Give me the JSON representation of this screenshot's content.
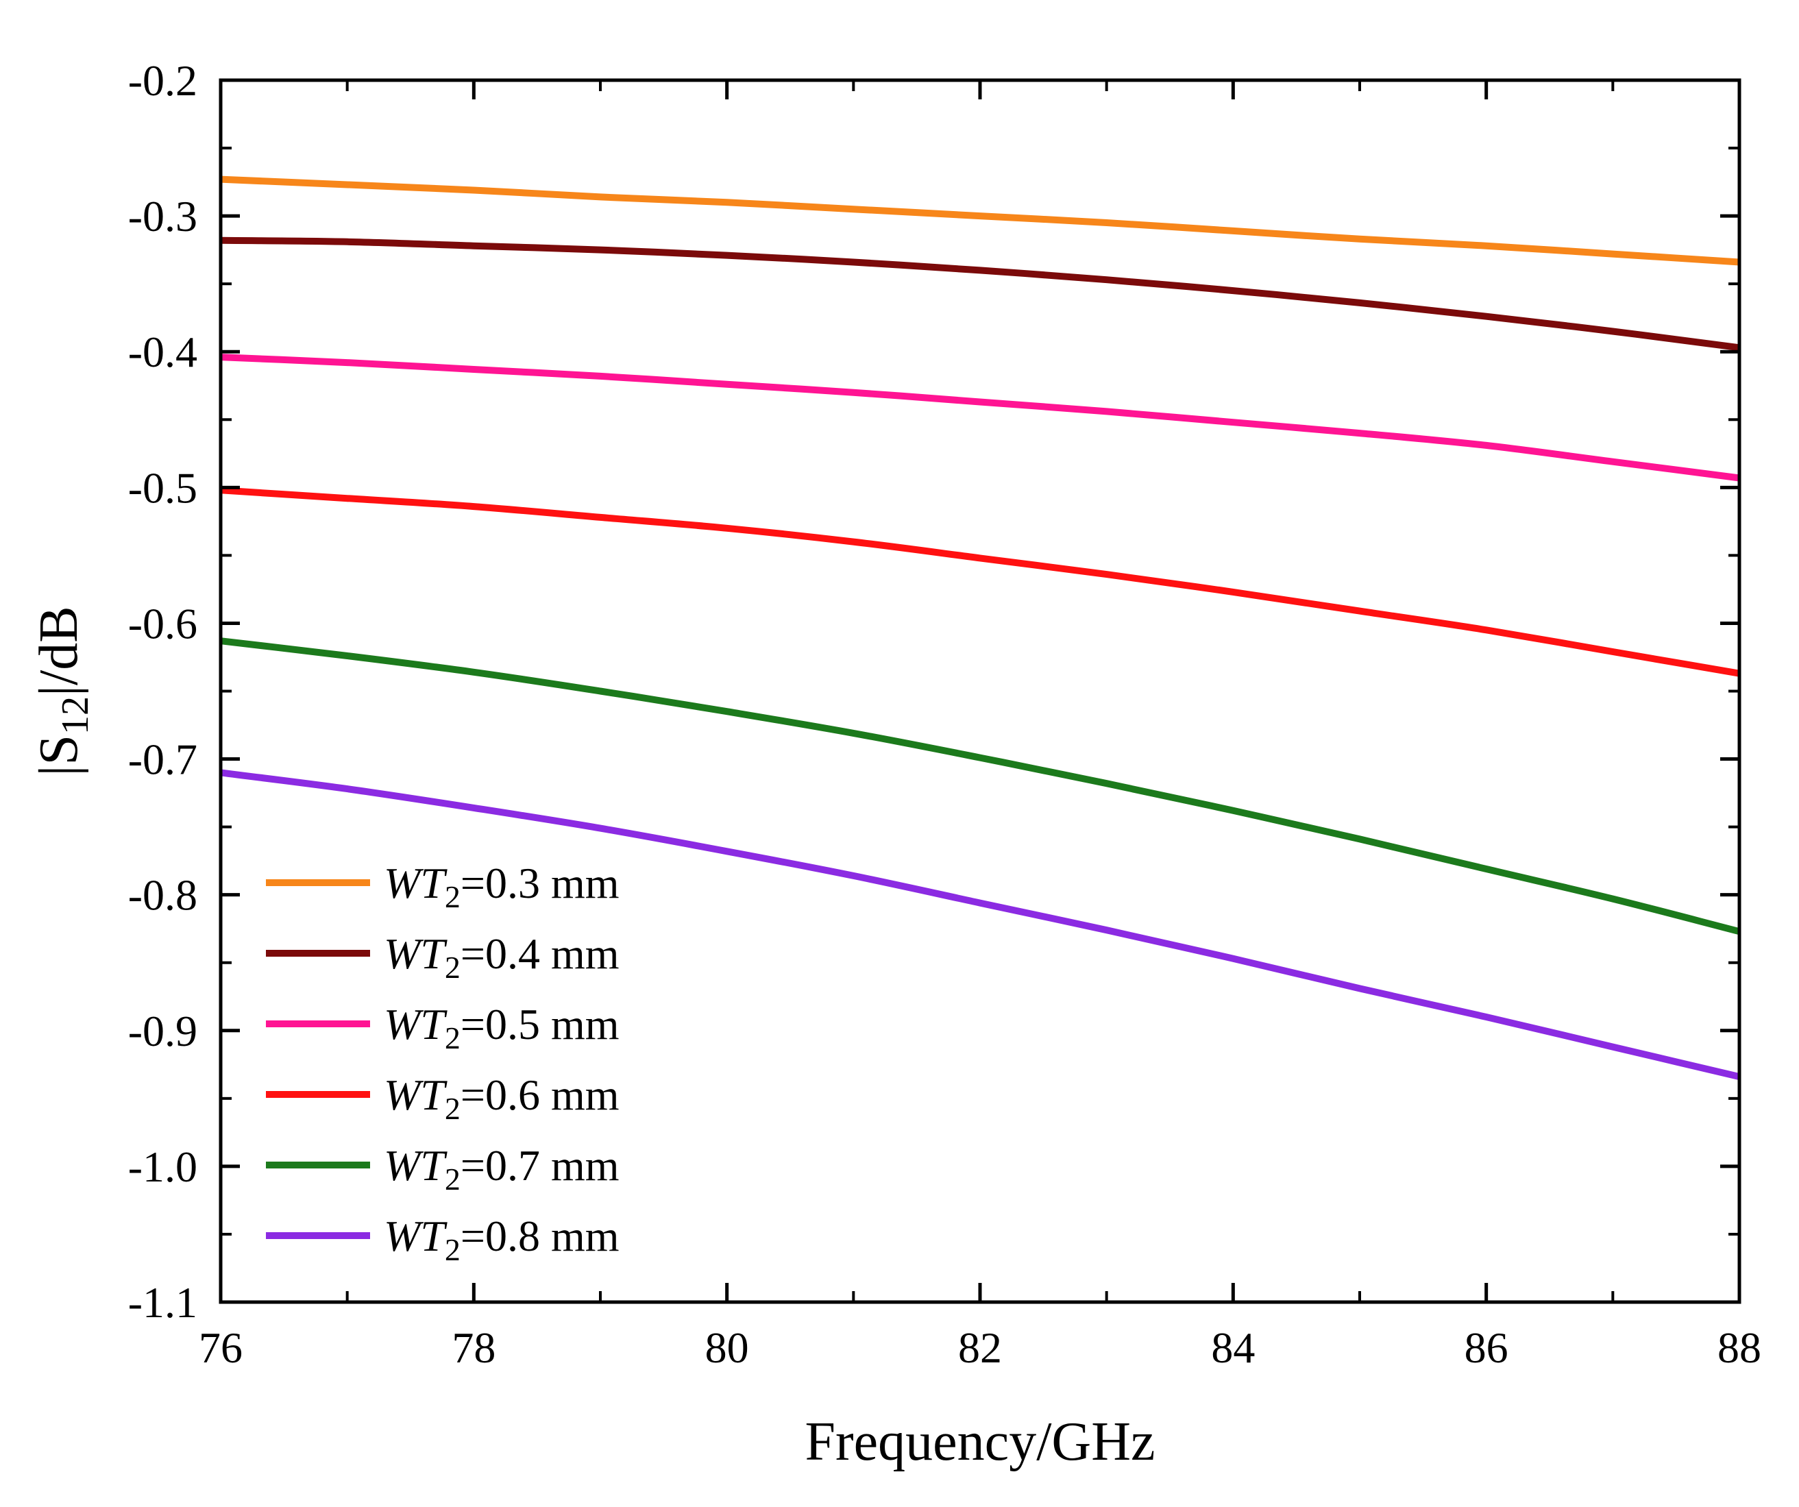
{
  "chart_data": {
    "type": "line",
    "title": "",
    "xlabel": "Frequency/GHz",
    "ylabel": {
      "prefix": "|S",
      "subscript": "12",
      "suffix": "|/dB"
    },
    "xlim": [
      76,
      88
    ],
    "ylim": [
      -1.1,
      -0.2
    ],
    "xticks": [
      76,
      78,
      80,
      82,
      84,
      86,
      88
    ],
    "xtick_labels": [
      "76",
      "78",
      "80",
      "82",
      "84",
      "86",
      "88"
    ],
    "yticks": [
      -0.2,
      -0.3,
      -0.4,
      -0.5,
      -0.6,
      -0.7,
      -0.8,
      -0.9,
      -1.0,
      -1.1
    ],
    "ytick_labels": [
      "-0.2",
      "-0.3",
      "-0.4",
      "-0.5",
      "-0.6",
      "-0.7",
      "-0.8",
      "-0.9",
      "-1.0",
      "-1.1"
    ],
    "grid": false,
    "legend_position": "bottom-left",
    "x": [
      76,
      77,
      78,
      79,
      80,
      81,
      82,
      83,
      84,
      85,
      86,
      87,
      88
    ],
    "series": [
      {
        "name": "WT2=0.3 mm",
        "label": {
          "italic": "WT",
          "subscript": "2",
          "rest": "=0.3 mm"
        },
        "color": "#f7861a",
        "values": [
          -0.273,
          -0.277,
          -0.281,
          -0.286,
          -0.29,
          -0.295,
          -0.3,
          -0.305,
          -0.311,
          -0.317,
          -0.322,
          -0.328,
          -0.334
        ]
      },
      {
        "name": "WT2=0.4 mm",
        "label": {
          "italic": "WT",
          "subscript": "2",
          "rest": "=0.4 mm"
        },
        "color": "#7b0a0a",
        "values": [
          -0.318,
          -0.319,
          -0.322,
          -0.325,
          -0.329,
          -0.334,
          -0.34,
          -0.347,
          -0.355,
          -0.364,
          -0.374,
          -0.385,
          -0.397
        ]
      },
      {
        "name": "WT2=0.5 mm",
        "label": {
          "italic": "WT",
          "subscript": "2",
          "rest": "=0.5 mm"
        },
        "color": "#ff1493",
        "values": [
          -0.404,
          -0.408,
          -0.413,
          -0.418,
          -0.424,
          -0.43,
          -0.437,
          -0.444,
          -0.452,
          -0.46,
          -0.469,
          -0.481,
          -0.493
        ]
      },
      {
        "name": "WT2=0.6 mm",
        "label": {
          "italic": "WT",
          "subscript": "2",
          "rest": "=0.6 mm"
        },
        "color": "#ff1111",
        "values": [
          -0.502,
          -0.508,
          -0.514,
          -0.522,
          -0.53,
          -0.54,
          -0.552,
          -0.564,
          -0.577,
          -0.591,
          -0.605,
          -0.621,
          -0.637
        ]
      },
      {
        "name": "WT2=0.7 mm",
        "label": {
          "italic": "WT",
          "subscript": "2",
          "rest": "=0.7 mm"
        },
        "color": "#1c7a1c",
        "values": [
          -0.613,
          -0.624,
          -0.636,
          -0.65,
          -0.665,
          -0.681,
          -0.699,
          -0.718,
          -0.738,
          -0.759,
          -0.781,
          -0.803,
          -0.827
        ]
      },
      {
        "name": "WT2=0.8 mm",
        "label": {
          "italic": "WT",
          "subscript": "2",
          "rest": "=0.8 mm"
        },
        "color": "#8b2be2",
        "values": [
          -0.71,
          -0.722,
          -0.736,
          -0.751,
          -0.768,
          -0.786,
          -0.806,
          -0.826,
          -0.847,
          -0.869,
          -0.89,
          -0.912,
          -0.934
        ]
      }
    ]
  }
}
